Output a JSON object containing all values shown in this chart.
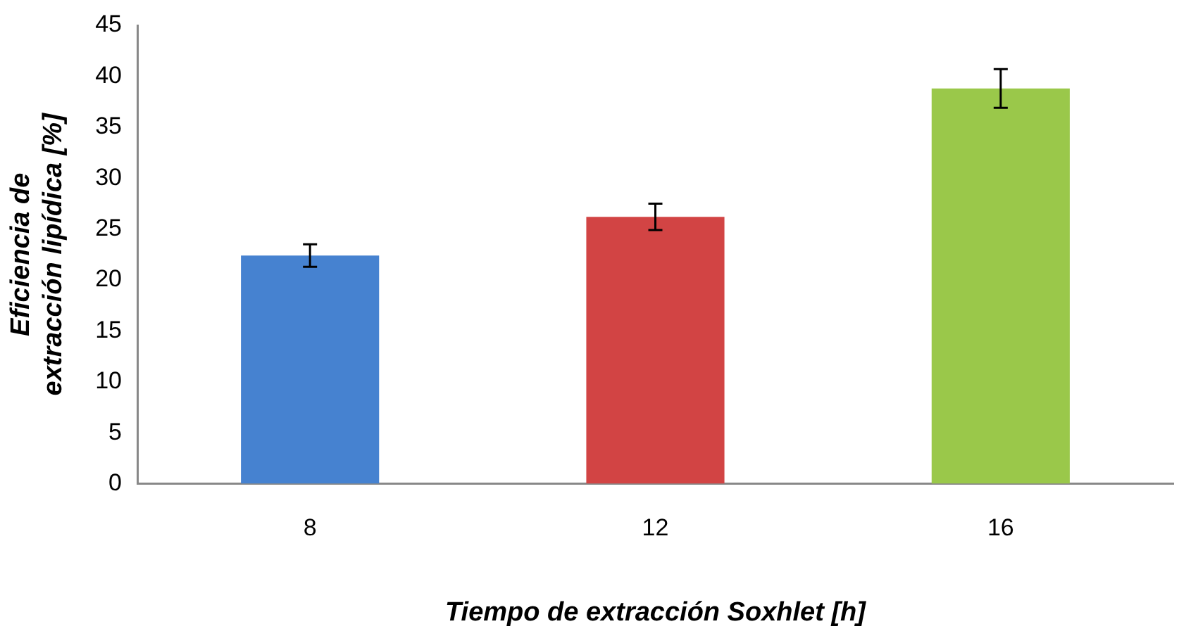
{
  "chart_data": {
    "type": "bar",
    "xlabel": "Tiempo de extracción Soxhlet [h]",
    "ylabel": "Eficiencia de extracción lipídica [%]",
    "categories": [
      "8",
      "12",
      "16"
    ],
    "values": [
      22.4,
      26.2,
      38.8
    ],
    "errors": [
      1.1,
      1.3,
      1.9
    ],
    "colors": [
      "#4682d0",
      "#d24444",
      "#9ac84a"
    ],
    "ylim": [
      0,
      45
    ],
    "yticks": [
      0,
      5,
      10,
      15,
      20,
      25,
      30,
      35,
      40,
      45
    ],
    "grid": false,
    "legend": false
  }
}
